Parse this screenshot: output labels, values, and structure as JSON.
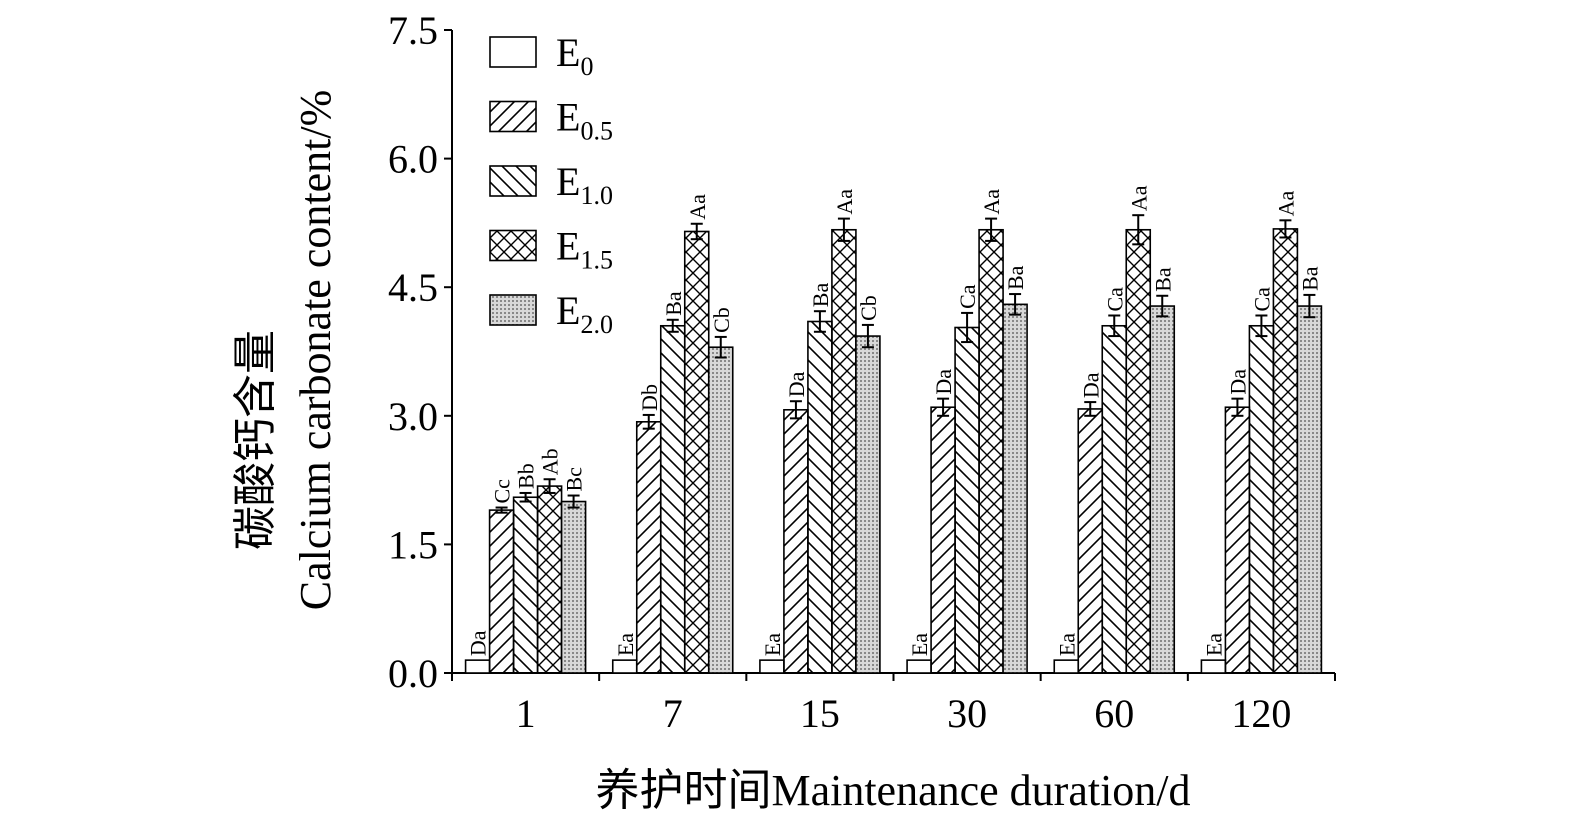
{
  "chart_data": {
    "type": "bar",
    "xlabel": "养护时间Maintenance duration/d",
    "ylabel": [
      "碳酸钙含量",
      "Calcium carbonate content/%"
    ],
    "categories": [
      "1",
      "7",
      "15",
      "30",
      "60",
      "120"
    ],
    "ylim": [
      0,
      7.5
    ],
    "yticks": [
      {
        "value": 0,
        "label": "0.0"
      },
      1.5,
      {
        "value": 3,
        "label": "3.0"
      },
      4.5,
      {
        "value": 6,
        "label": "6.0"
      },
      7.5
    ],
    "legend": "upper left",
    "series": [
      {
        "name": "E0",
        "color": "#ffffff",
        "hatch": "none",
        "values": [
          0.15,
          0.15,
          0.15,
          0.15,
          0.15,
          0.15
        ],
        "letters": [
          "Da",
          "Ea",
          "Ea",
          "Ea",
          "Ea",
          "Ea"
        ]
      },
      {
        "name": "E0.5",
        "color": "#ffffff",
        "hatch": "/",
        "values": [
          1.9,
          2.93,
          3.07,
          3.1,
          3.08,
          3.1
        ],
        "errors": [
          0.03,
          0.08,
          0.1,
          0.1,
          0.08,
          0.1
        ],
        "letters": [
          "Cc",
          "Db",
          "Da",
          "Da",
          "Da",
          "Da"
        ]
      },
      {
        "name": "E1.0",
        "color": "#ffffff",
        "hatch": "\\",
        "values": [
          2.05,
          4.05,
          4.1,
          4.03,
          4.05,
          4.05
        ],
        "errors": [
          0.05,
          0.07,
          0.12,
          0.17,
          0.12,
          0.12
        ],
        "letters": [
          "Bb",
          "Ba",
          "Ba",
          "Ca",
          "Ca",
          "Ca"
        ]
      },
      {
        "name": "E1.5",
        "color": "#ffffff",
        "hatch": "x",
        "values": [
          2.18,
          5.15,
          5.17,
          5.17,
          5.17,
          5.18
        ],
        "errors": [
          0.08,
          0.09,
          0.13,
          0.13,
          0.17,
          0.1
        ],
        "letters": [
          "Ab",
          "Aa",
          "Aa",
          "Aa",
          "Aa",
          "Aa"
        ]
      },
      {
        "name": "E2.0",
        "color": "#cfcfcf",
        "hatch": "dots",
        "values": [
          2.0,
          3.8,
          3.93,
          4.3,
          4.28,
          4.28
        ],
        "errors": [
          0.07,
          0.12,
          0.13,
          0.12,
          0.12,
          0.13
        ],
        "letters": [
          "Bc",
          "Cb",
          "Cb",
          "Ba",
          "Ba",
          "Ba"
        ]
      }
    ]
  }
}
